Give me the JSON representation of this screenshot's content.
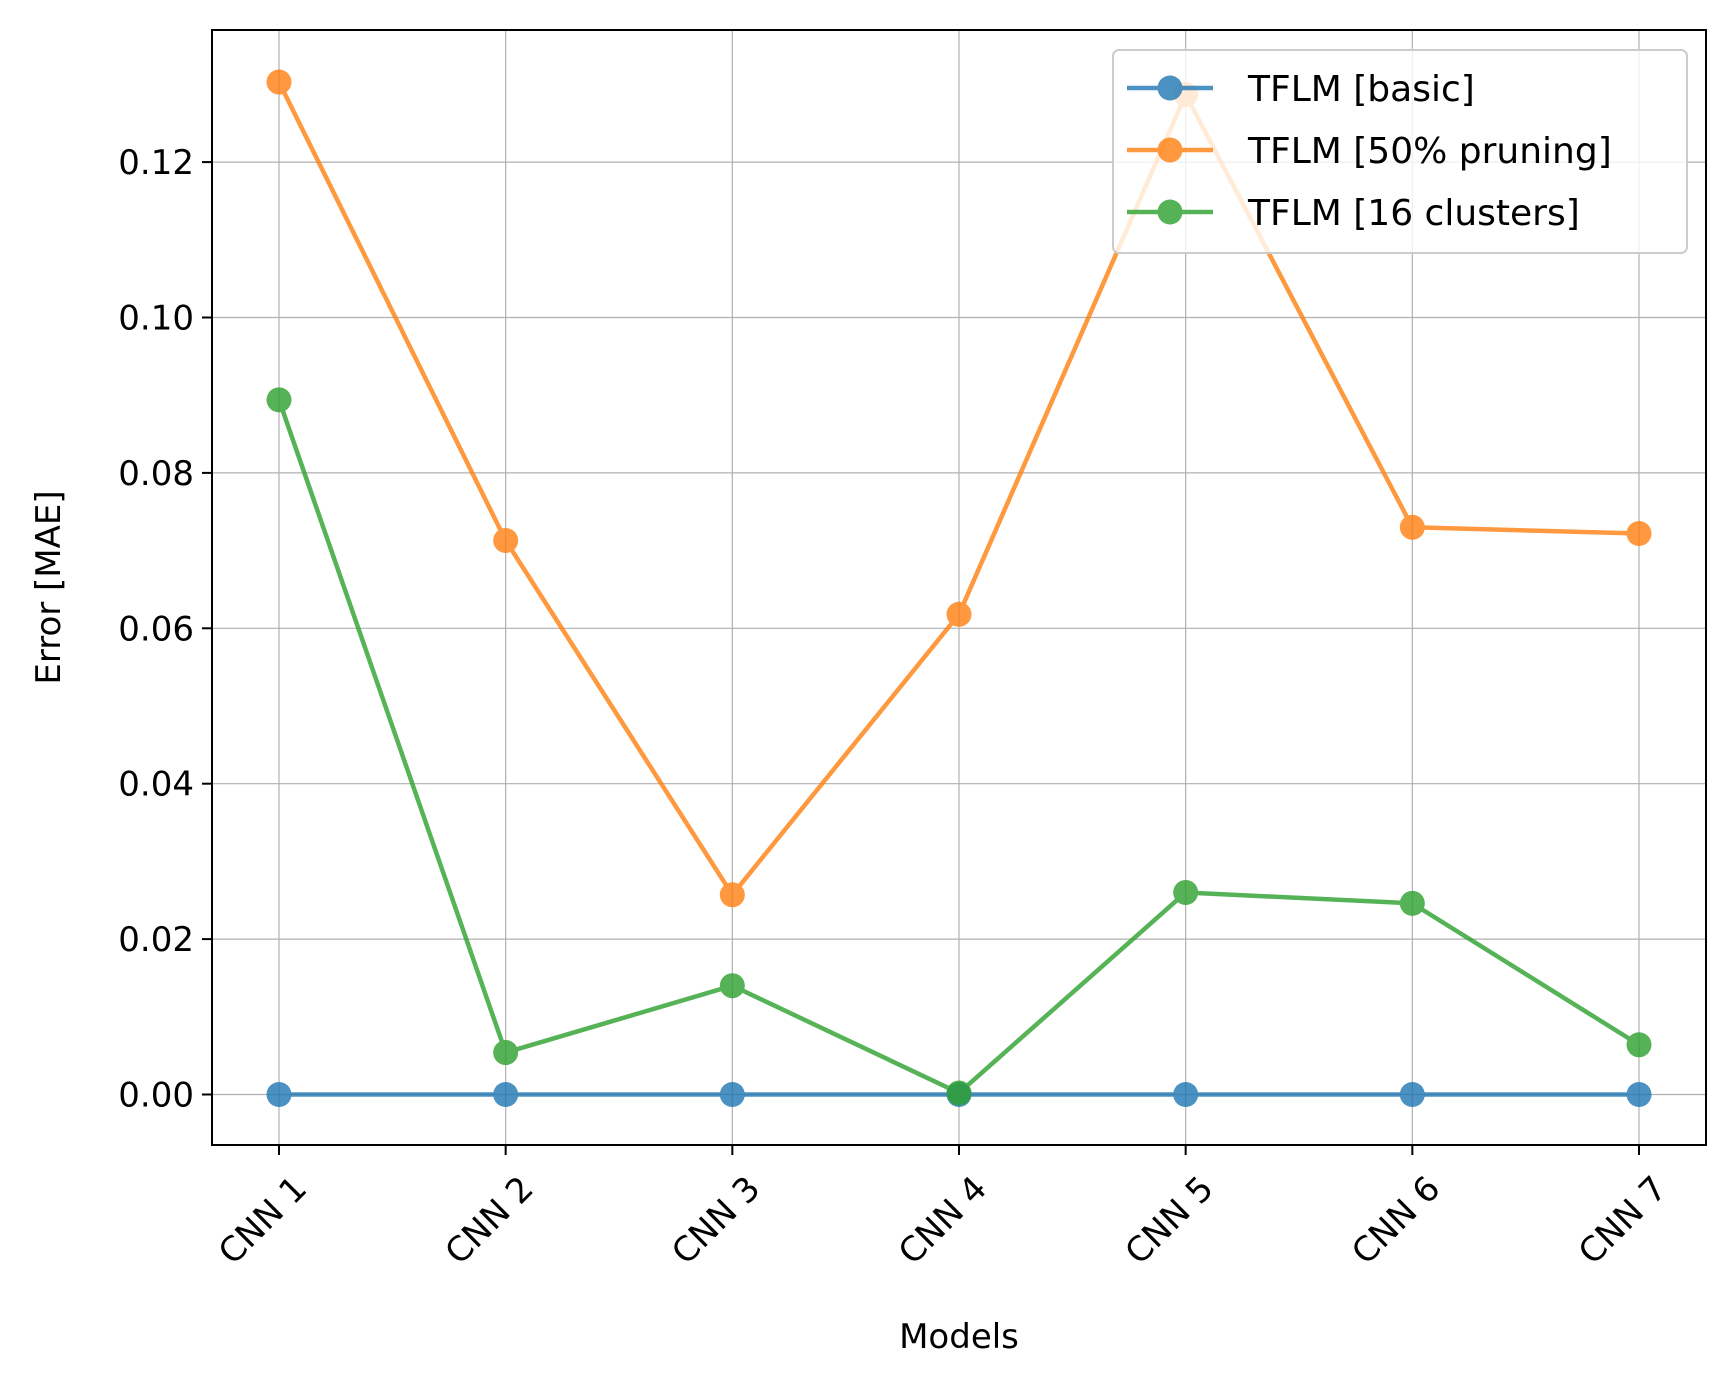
{
  "chart_data": {
    "type": "line",
    "title": "",
    "xlabel": "Models",
    "ylabel": "Error [MAE]",
    "categories": [
      "CNN 1",
      "CNN 2",
      "CNN 3",
      "CNN 4",
      "CNN 5",
      "CNN 6",
      "CNN 7"
    ],
    "ylim": [
      -0.0065,
      0.137
    ],
    "yticks": [
      0.0,
      0.02,
      0.04,
      0.06,
      0.08,
      0.1,
      0.12
    ],
    "ytick_labels": [
      "0.00",
      "0.02",
      "0.04",
      "0.06",
      "0.08",
      "0.10",
      "0.12"
    ],
    "grid": true,
    "legend_position": "top-right",
    "series": [
      {
        "name": "TFLM [basic]",
        "color": "#1f77b4",
        "values": [
          0.0,
          0.0,
          0.0,
          0.0,
          0.0,
          0.0,
          0.0
        ]
      },
      {
        "name": "TFLM [50% pruning]",
        "color": "#ff7f0e",
        "values": [
          0.1303,
          0.0713,
          0.0257,
          0.0618,
          0.1287,
          0.073,
          0.0722
        ]
      },
      {
        "name": "TFLM [16 clusters]",
        "color": "#2ca02c",
        "values": [
          0.0894,
          0.0054,
          0.014,
          0.0002,
          0.026,
          0.0246,
          0.0064
        ]
      }
    ]
  }
}
